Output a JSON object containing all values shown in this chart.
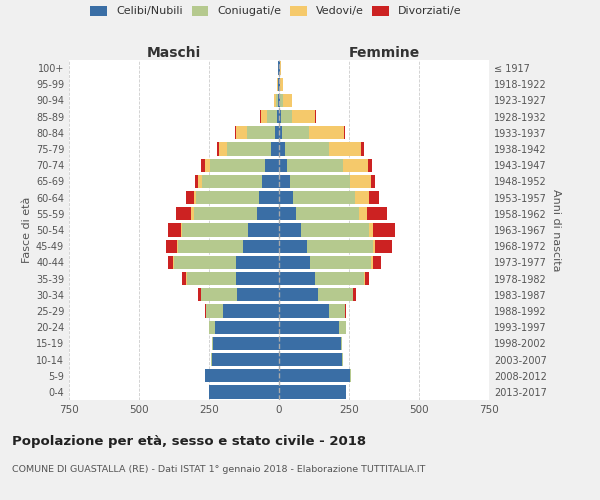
{
  "age_groups": [
    "0-4",
    "5-9",
    "10-14",
    "15-19",
    "20-24",
    "25-29",
    "30-34",
    "35-39",
    "40-44",
    "45-49",
    "50-54",
    "55-59",
    "60-64",
    "65-69",
    "70-74",
    "75-79",
    "80-84",
    "85-89",
    "90-94",
    "95-99",
    "100+"
  ],
  "birth_years": [
    "2013-2017",
    "2008-2012",
    "2003-2007",
    "1998-2002",
    "1993-1997",
    "1988-1992",
    "1983-1987",
    "1978-1982",
    "1973-1977",
    "1968-1972",
    "1963-1967",
    "1958-1962",
    "1953-1957",
    "1948-1952",
    "1943-1947",
    "1938-1942",
    "1933-1937",
    "1928-1932",
    "1923-1927",
    "1918-1922",
    "≤ 1917"
  ],
  "maschi": {
    "celibe": [
      250,
      265,
      240,
      235,
      230,
      200,
      150,
      155,
      155,
      130,
      110,
      80,
      70,
      60,
      50,
      30,
      15,
      8,
      3,
      2,
      2
    ],
    "coniugato": [
      0,
      1,
      2,
      5,
      20,
      60,
      130,
      175,
      220,
      230,
      235,
      225,
      225,
      215,
      195,
      155,
      100,
      35,
      8,
      2,
      1
    ],
    "vedovo": [
      0,
      0,
      0,
      0,
      0,
      0,
      0,
      1,
      2,
      3,
      5,
      8,
      10,
      15,
      20,
      28,
      38,
      22,
      6,
      2,
      1
    ],
    "divorziato": [
      0,
      0,
      0,
      0,
      1,
      3,
      8,
      15,
      20,
      40,
      45,
      55,
      28,
      10,
      12,
      8,
      3,
      2,
      0,
      0,
      0
    ]
  },
  "femmine": {
    "nubile": [
      240,
      255,
      225,
      220,
      215,
      180,
      140,
      130,
      110,
      100,
      80,
      60,
      50,
      40,
      28,
      20,
      12,
      8,
      4,
      3,
      2
    ],
    "coniugata": [
      0,
      1,
      2,
      5,
      25,
      55,
      125,
      175,
      220,
      235,
      240,
      225,
      222,
      215,
      200,
      160,
      95,
      38,
      10,
      2,
      1
    ],
    "vedova": [
      0,
      0,
      0,
      0,
      0,
      0,
      1,
      2,
      5,
      8,
      15,
      30,
      50,
      75,
      90,
      112,
      125,
      82,
      32,
      8,
      3
    ],
    "divorziata": [
      0,
      0,
      0,
      0,
      1,
      3,
      8,
      15,
      30,
      60,
      80,
      70,
      35,
      12,
      15,
      10,
      5,
      3,
      1,
      0,
      0
    ]
  },
  "colors": {
    "celibe": "#3a6ea5",
    "coniugato": "#b5c98e",
    "vedovo": "#f5c96b",
    "divorziato": "#cc2222"
  },
  "legend_labels": [
    "Celibi/Nubili",
    "Coniugati/e",
    "Vedovi/e",
    "Divorziati/e"
  ],
  "title": "Popolazione per età, sesso e stato civile - 2018",
  "subtitle": "COMUNE DI GUASTALLA (RE) - Dati ISTAT 1° gennaio 2018 - Elaborazione TUTTITALIA.IT",
  "xlabel_left": "Maschi",
  "xlabel_right": "Femmine",
  "ylabel_left": "Fasce di età",
  "ylabel_right": "Anni di nascita",
  "xlim": 750,
  "background_color": "#f0f0f0",
  "plot_background": "#ffffff"
}
